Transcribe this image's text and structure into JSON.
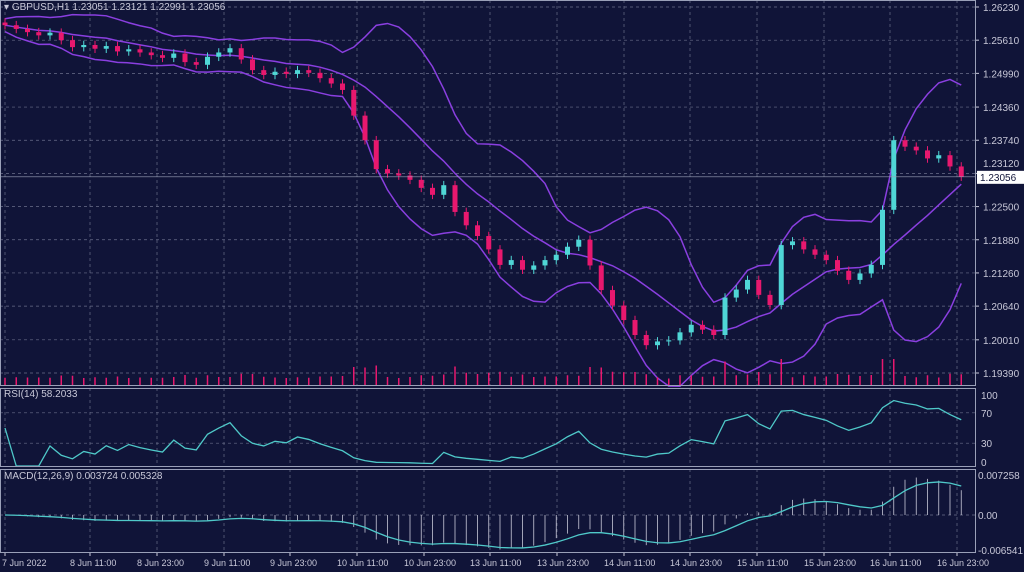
{
  "header": {
    "symbol": "GBPUSD,H1",
    "ohlc": "1.23051 1.23121 1.22991 1.23056"
  },
  "colors": {
    "background": "#101438",
    "bull": "#4fd6d6",
    "bear": "#e8186e",
    "bands": "#8a3fe0",
    "indicator": "#4fc9c9",
    "grid": "#6a6e8a"
  },
  "chart_data": [
    {
      "type": "candlestick",
      "title": "GBPUSD,H1",
      "price_ticks": [
        "1.26230",
        "1.25610",
        "1.24990",
        "1.24360",
        "1.23740",
        "1.23120",
        "1.22500",
        "1.21880",
        "1.21260",
        "1.20640",
        "1.20010",
        "1.19390"
      ],
      "current_price": "1.23056",
      "ylim": [
        1.1939,
        1.2623
      ],
      "x_ticks": [
        "7 Jun 2022",
        "8 Jun 11:00",
        "8 Jun 23:00",
        "9 Jun 11:00",
        "9 Jun 23:00",
        "10 Jun 11:00",
        "10 Jun 23:00",
        "13 Jun 11:00",
        "13 Jun 23:00",
        "14 Jun 11:00",
        "14 Jun 23:00",
        "15 Jun 11:00",
        "15 Jun 23:00",
        "16 Jun 11:00",
        "16 Jun 23:00"
      ],
      "overlays": [
        "Bollinger Bands"
      ],
      "closes": [
        1.2589,
        1.2582,
        1.2576,
        1.257,
        1.2575,
        1.2561,
        1.2548,
        1.2552,
        1.2545,
        1.255,
        1.254,
        1.2544,
        1.2538,
        1.2533,
        1.2528,
        1.2536,
        1.252,
        1.2515,
        1.253,
        1.2538,
        1.2546,
        1.2525,
        1.2505,
        1.2496,
        1.2502,
        1.2498,
        1.2505,
        1.25,
        1.249,
        1.248,
        1.2468,
        1.242,
        1.2374,
        1.232,
        1.2312,
        1.2308,
        1.23,
        1.2285,
        1.2272,
        1.229,
        1.224,
        1.2215,
        1.2195,
        1.217,
        1.2141,
        1.215,
        1.2132,
        1.214,
        1.215,
        1.216,
        1.2175,
        1.2188,
        1.214,
        1.2094,
        1.2065,
        1.2038,
        1.201,
        1.1991,
        1.1998,
        1.2,
        1.2015,
        1.2029,
        1.202,
        1.201,
        1.208,
        1.2095,
        1.2113,
        1.2085,
        1.2066,
        1.2178,
        1.2185,
        1.217,
        1.216,
        1.215,
        1.213,
        1.2113,
        1.2125,
        1.2141,
        1.2244,
        1.2374,
        1.2362,
        1.2355,
        1.234,
        1.2346,
        1.2325,
        1.2306
      ]
    },
    {
      "type": "line",
      "title": "RSI(14) 58.2033",
      "ylim": [
        0,
        100
      ],
      "y_ticks": [
        "100",
        "70",
        "30",
        "0"
      ]
    },
    {
      "type": "line+bar",
      "title": "MACD(12,26,9) 0.003724 0.005328",
      "ylim": [
        -0.006541,
        0.007258
      ],
      "y_ticks": [
        "0.007258",
        "0.00",
        "-0.006541"
      ]
    }
  ]
}
